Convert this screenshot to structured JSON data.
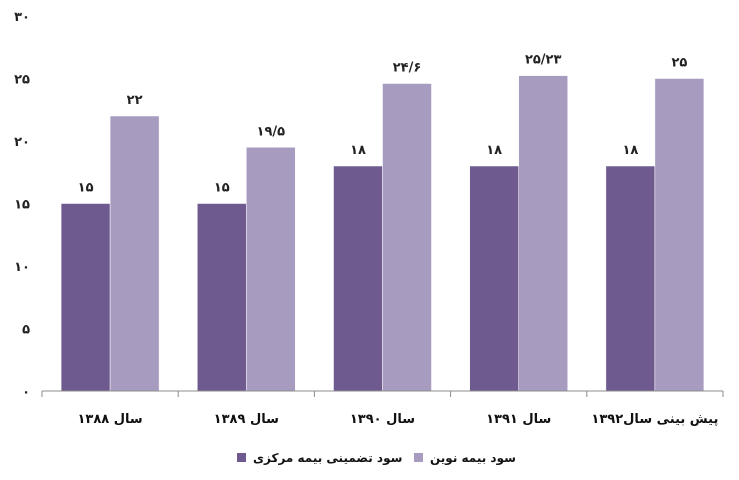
{
  "chart_data": {
    "type": "bar",
    "categories": [
      "سال ۱۳۸۸",
      "سال ۱۳۸۹",
      "سال ۱۳۹۰",
      "سال ۱۳۹۱",
      "پیش بینی سال۱۳۹۲"
    ],
    "series": [
      {
        "name": "سود تضمینی بیمه مرکزی",
        "values": [
          15,
          15,
          18,
          18,
          18
        ],
        "labels": [
          "۱۵",
          "۱۵",
          "۱۸",
          "۱۸",
          "۱۸"
        ],
        "color": "#6e5a8e"
      },
      {
        "name": "سود بیمه نوین",
        "values": [
          22,
          19.5,
          24.6,
          25.23,
          25
        ],
        "labels": [
          "۲۲",
          "۱۹/۵",
          "۲۴/۶",
          "۲۵/۲۳",
          "۲۵"
        ],
        "color": "#a89bc0"
      }
    ],
    "ylim": [
      0,
      30
    ],
    "yticks": [
      0,
      5,
      10,
      15,
      20,
      25,
      30
    ],
    "ytick_labels": [
      "۰",
      "۵",
      "۱۰",
      "۱۵",
      "۲۰",
      "۲۵",
      "۳۰"
    ],
    "grid": false,
    "legend_position": "bottom",
    "title": "",
    "xlabel": "",
    "ylabel": ""
  }
}
